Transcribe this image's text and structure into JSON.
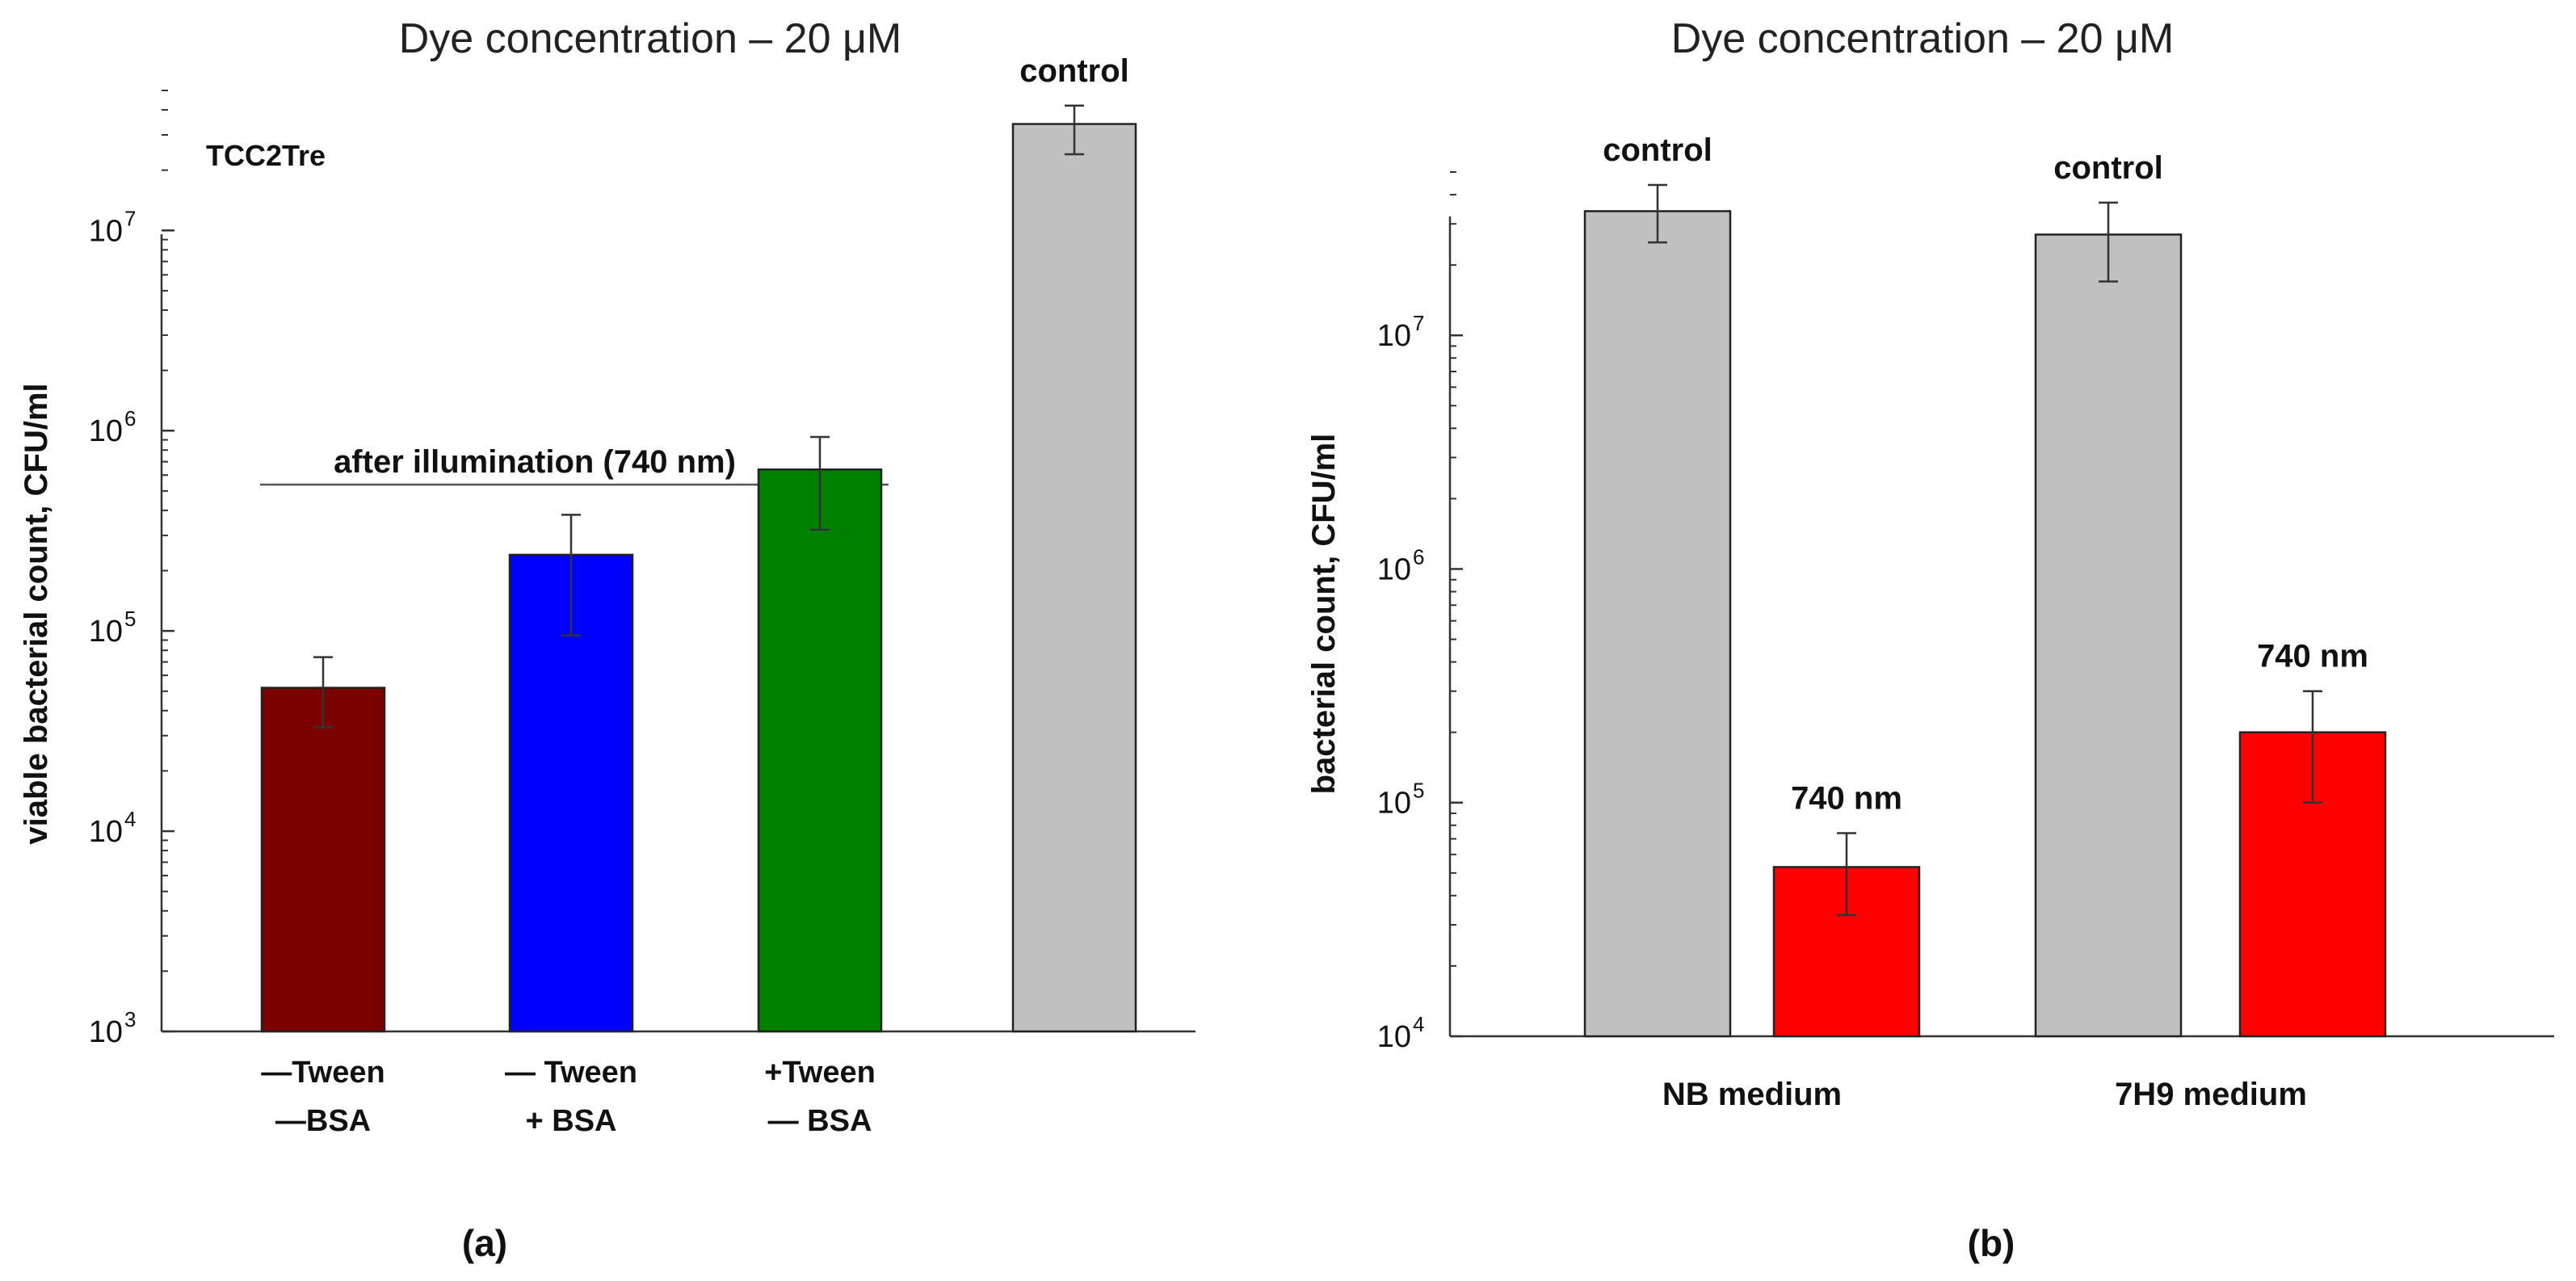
{
  "chart_data": [
    {
      "panel": "(a)",
      "type": "bar",
      "title": "Dye concentration – 20 μM",
      "subtitle": "TCC2Tre",
      "ylabel": "viable bacterial count, CFU/ml",
      "yscale": "log",
      "ylim": [
        1000,
        50000000
      ],
      "yticks": [
        {
          "value": 1000,
          "base": "10",
          "exp": "3"
        },
        {
          "value": 10000,
          "base": "10",
          "exp": "4"
        },
        {
          "value": 100000,
          "base": "10",
          "exp": "5"
        },
        {
          "value": 1000000,
          "base": "10",
          "exp": "6"
        },
        {
          "value": 10000000,
          "base": "10",
          "exp": "7"
        }
      ],
      "group_annotation": "after illumination (740 nm)",
      "bars": [
        {
          "label_lines": [
            "—Tween",
            "—BSA"
          ],
          "value": 52000,
          "err_low": 33000,
          "err_high": 74000,
          "color": "#7b0000",
          "top_label": ""
        },
        {
          "label_lines": [
            "— Tween",
            "+ BSA"
          ],
          "value": 240000,
          "err_low": 95000,
          "err_high": 380000,
          "color": "#0000ff",
          "top_label": ""
        },
        {
          "label_lines": [
            "+Tween",
            "— BSA"
          ],
          "value": 640000,
          "err_low": 320000,
          "err_high": 930000,
          "color": "#008000",
          "top_label": ""
        },
        {
          "label_lines": [],
          "value": 34000000,
          "err_low": 24000000,
          "err_high": 42000000,
          "color": "#c0c0c0",
          "top_label": "control"
        }
      ]
    },
    {
      "panel": "(b)",
      "type": "bar",
      "title": "Dye concentration – 20 μM",
      "ylabel": "bacterial count, CFU/ml",
      "yscale": "log",
      "ylim": [
        10000,
        50000000
      ],
      "yticks": [
        {
          "value": 10000,
          "base": "10",
          "exp": "4"
        },
        {
          "value": 100000,
          "base": "10",
          "exp": "5"
        },
        {
          "value": 1000000,
          "base": "10",
          "exp": "6"
        },
        {
          "value": 10000000,
          "base": "10",
          "exp": "7"
        }
      ],
      "categories": [
        "NB medium",
        "7H9 medium"
      ],
      "bars": [
        {
          "category": 0,
          "value": 34000000,
          "err_low": 25000000,
          "err_high": 44000000,
          "color": "#c0c0c0",
          "top_label": "control"
        },
        {
          "category": 0,
          "value": 53000,
          "err_low": 33000,
          "err_high": 74000,
          "color": "#ff0000",
          "top_label": "740 nm"
        },
        {
          "category": 1,
          "value": 27000000,
          "err_low": 17000000,
          "err_high": 37000000,
          "color": "#c0c0c0",
          "top_label": "control"
        },
        {
          "category": 1,
          "value": 200000,
          "err_low": 100000,
          "err_high": 300000,
          "color": "#ff0000",
          "top_label": "740 nm"
        }
      ]
    }
  ]
}
